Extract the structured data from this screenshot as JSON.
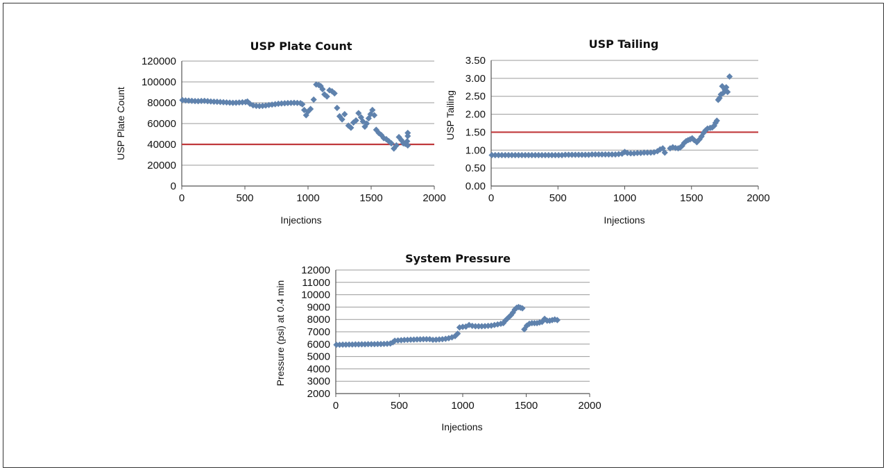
{
  "colors": {
    "marker": "#5f82ad",
    "threshold": "#c0383b",
    "grid": "#9a9a9a",
    "axis": "#555555"
  },
  "chart_data": [
    {
      "type": "scatter",
      "title": "USP Plate Count",
      "xlabel": "Injections",
      "ylabel": "USP Plate Count",
      "xlim": [
        0,
        2000
      ],
      "ylim": [
        0,
        120000
      ],
      "xticks": [
        "0",
        "500",
        "1000",
        "1500",
        "2000"
      ],
      "xtick_values": [
        0,
        500,
        1000,
        1500,
        2000
      ],
      "yticks": [
        "0",
        "20000",
        "40000",
        "60000",
        "80000",
        "100000",
        "120000"
      ],
      "ytick_values": [
        0,
        20000,
        40000,
        60000,
        80000,
        100000,
        120000
      ],
      "grid": true,
      "threshold": 40000,
      "series": [
        {
          "points": [
            [
              5,
              82500
            ],
            [
              30,
              82200
            ],
            [
              55,
              82000
            ],
            [
              80,
              81800
            ],
            [
              105,
              81600
            ],
            [
              130,
              81500
            ],
            [
              155,
              81700
            ],
            [
              180,
              81800
            ],
            [
              205,
              81500
            ],
            [
              230,
              81200
            ],
            [
              255,
              81000
            ],
            [
              280,
              80900
            ],
            [
              305,
              80700
            ],
            [
              330,
              80500
            ],
            [
              355,
              80300
            ],
            [
              380,
              80100
            ],
            [
              405,
              79900
            ],
            [
              430,
              80000
            ],
            [
              455,
              80200
            ],
            [
              480,
              80400
            ],
            [
              505,
              80600
            ],
            [
              520,
              81200
            ],
            [
              540,
              79000
            ],
            [
              565,
              77500
            ],
            [
              590,
              77000
            ],
            [
              615,
              76800
            ],
            [
              640,
              77000
            ],
            [
              665,
              77300
            ],
            [
              690,
              77800
            ],
            [
              715,
              78200
            ],
            [
              740,
              78600
            ],
            [
              765,
              79000
            ],
            [
              790,
              79300
            ],
            [
              815,
              79500
            ],
            [
              840,
              79700
            ],
            [
              865,
              79800
            ],
            [
              890,
              79900
            ],
            [
              915,
              79800
            ],
            [
              940,
              79600
            ],
            [
              955,
              78500
            ],
            [
              970,
              73000
            ],
            [
              985,
              68000
            ],
            [
              1000,
              71500
            ],
            [
              1020,
              74000
            ],
            [
              1045,
              83000
            ],
            [
              1065,
              97500
            ],
            [
              1085,
              97000
            ],
            [
              1100,
              96000
            ],
            [
              1115,
              93000
            ],
            [
              1130,
              88000
            ],
            [
              1150,
              86000
            ],
            [
              1170,
              92000
            ],
            [
              1190,
              91000
            ],
            [
              1210,
              89000
            ],
            [
              1230,
              75000
            ],
            [
              1250,
              67000
            ],
            [
              1270,
              64000
            ],
            [
              1290,
              69000
            ],
            [
              1320,
              58000
            ],
            [
              1340,
              56000
            ],
            [
              1360,
              61000
            ],
            [
              1380,
              63000
            ],
            [
              1400,
              70000
            ],
            [
              1420,
              66000
            ],
            [
              1435,
              62000
            ],
            [
              1450,
              57000
            ],
            [
              1465,
              60000
            ],
            [
              1480,
              65000
            ],
            [
              1495,
              69000
            ],
            [
              1510,
              73000
            ],
            [
              1525,
              68000
            ],
            [
              1540,
              54000
            ],
            [
              1560,
              51000
            ],
            [
              1580,
              49000
            ],
            [
              1600,
              46000
            ],
            [
              1620,
              45000
            ],
            [
              1640,
              43000
            ],
            [
              1660,
              41000
            ],
            [
              1680,
              36000
            ],
            [
              1700,
              39000
            ],
            [
              1720,
              47000
            ],
            [
              1740,
              44000
            ],
            [
              1755,
              41000
            ],
            [
              1770,
              40500
            ],
            [
              1785,
              43000
            ],
            [
              1790,
              39000
            ],
            [
              1790,
              48000
            ],
            [
              1790,
              51000
            ]
          ]
        }
      ]
    },
    {
      "type": "scatter",
      "title": "USP Tailing",
      "xlabel": "Injections",
      "ylabel": "USP Tailing",
      "xlim": [
        0,
        2000
      ],
      "ylim": [
        0,
        3.5
      ],
      "xticks": [
        "0",
        "500",
        "1000",
        "1500",
        "2000"
      ],
      "xtick_values": [
        0,
        500,
        1000,
        1500,
        2000
      ],
      "yticks": [
        "0.00",
        "0.50",
        "1.00",
        "1.50",
        "2.00",
        "2.50",
        "3.00",
        "3.50"
      ],
      "ytick_values": [
        0,
        0.5,
        1,
        1.5,
        2,
        2.5,
        3,
        3.5
      ],
      "grid": true,
      "threshold": 1.5,
      "series": [
        {
          "points": [
            [
              5,
              0.86
            ],
            [
              30,
              0.86
            ],
            [
              55,
              0.86
            ],
            [
              80,
              0.86
            ],
            [
              105,
              0.86
            ],
            [
              130,
              0.86
            ],
            [
              155,
              0.86
            ],
            [
              180,
              0.86
            ],
            [
              205,
              0.86
            ],
            [
              230,
              0.86
            ],
            [
              255,
              0.86
            ],
            [
              280,
              0.86
            ],
            [
              305,
              0.86
            ],
            [
              330,
              0.86
            ],
            [
              355,
              0.86
            ],
            [
              380,
              0.86
            ],
            [
              405,
              0.86
            ],
            [
              430,
              0.86
            ],
            [
              455,
              0.86
            ],
            [
              480,
              0.86
            ],
            [
              505,
              0.86
            ],
            [
              530,
              0.86
            ],
            [
              555,
              0.87
            ],
            [
              580,
              0.87
            ],
            [
              605,
              0.87
            ],
            [
              630,
              0.87
            ],
            [
              655,
              0.87
            ],
            [
              680,
              0.87
            ],
            [
              705,
              0.87
            ],
            [
              730,
              0.87
            ],
            [
              755,
              0.88
            ],
            [
              780,
              0.88
            ],
            [
              805,
              0.88
            ],
            [
              830,
              0.88
            ],
            [
              855,
              0.88
            ],
            [
              880,
              0.88
            ],
            [
              905,
              0.88
            ],
            [
              930,
              0.88
            ],
            [
              955,
              0.89
            ],
            [
              980,
              0.9
            ],
            [
              1000,
              0.95
            ],
            [
              1020,
              0.92
            ],
            [
              1045,
              0.91
            ],
            [
              1070,
              0.91
            ],
            [
              1095,
              0.92
            ],
            [
              1120,
              0.92
            ],
            [
              1145,
              0.93
            ],
            [
              1170,
              0.93
            ],
            [
              1195,
              0.93
            ],
            [
              1220,
              0.94
            ],
            [
              1245,
              0.97
            ],
            [
              1265,
              1.02
            ],
            [
              1285,
              1.05
            ],
            [
              1300,
              0.93
            ],
            [
              1340,
              1.05
            ],
            [
              1360,
              1.08
            ],
            [
              1380,
              1.06
            ],
            [
              1400,
              1.05
            ],
            [
              1415,
              1.07
            ],
            [
              1430,
              1.12
            ],
            [
              1445,
              1.2
            ],
            [
              1460,
              1.25
            ],
            [
              1475,
              1.28
            ],
            [
              1490,
              1.3
            ],
            [
              1505,
              1.33
            ],
            [
              1520,
              1.28
            ],
            [
              1540,
              1.22
            ],
            [
              1560,
              1.3
            ],
            [
              1575,
              1.38
            ],
            [
              1590,
              1.48
            ],
            [
              1605,
              1.55
            ],
            [
              1620,
              1.6
            ],
            [
              1640,
              1.62
            ],
            [
              1655,
              1.63
            ],
            [
              1670,
              1.68
            ],
            [
              1680,
              1.76
            ],
            [
              1690,
              1.82
            ],
            [
              1700,
              2.4
            ],
            [
              1710,
              2.45
            ],
            [
              1720,
              2.55
            ],
            [
              1730,
              2.78
            ],
            [
              1740,
              2.6
            ],
            [
              1750,
              2.68
            ],
            [
              1760,
              2.75
            ],
            [
              1770,
              2.62
            ],
            [
              1785,
              3.05
            ]
          ]
        }
      ]
    },
    {
      "type": "scatter",
      "title": "System Pressure",
      "xlabel": "Injections",
      "ylabel": "Pressure (psi) at 0.4 min",
      "xlim": [
        0,
        2000
      ],
      "ylim": [
        2000,
        12000
      ],
      "xticks": [
        "0",
        "500",
        "1000",
        "1500",
        "2000"
      ],
      "xtick_values": [
        0,
        500,
        1000,
        1500,
        2000
      ],
      "yticks": [
        "2000",
        "3000",
        "4000",
        "5000",
        "6000",
        "7000",
        "8000",
        "9000",
        "10000",
        "11000",
        "12000"
      ],
      "ytick_values": [
        2000,
        3000,
        4000,
        5000,
        6000,
        7000,
        8000,
        9000,
        10000,
        11000,
        12000
      ],
      "grid": true,
      "series": [
        {
          "points": [
            [
              5,
              5950
            ],
            [
              30,
              5950
            ],
            [
              55,
              5960
            ],
            [
              80,
              5960
            ],
            [
              105,
              5970
            ],
            [
              130,
              5970
            ],
            [
              155,
              5980
            ],
            [
              180,
              5980
            ],
            [
              205,
              5990
            ],
            [
              230,
              5990
            ],
            [
              255,
              6000
            ],
            [
              280,
              6000
            ],
            [
              305,
              6000
            ],
            [
              330,
              6010
            ],
            [
              355,
              6010
            ],
            [
              380,
              6020
            ],
            [
              405,
              6030
            ],
            [
              430,
              6050
            ],
            [
              450,
              6150
            ],
            [
              465,
              6280
            ],
            [
              490,
              6300
            ],
            [
              515,
              6320
            ],
            [
              540,
              6340
            ],
            [
              565,
              6350
            ],
            [
              590,
              6360
            ],
            [
              615,
              6370
            ],
            [
              640,
              6380
            ],
            [
              665,
              6390
            ],
            [
              690,
              6400
            ],
            [
              715,
              6400
            ],
            [
              740,
              6400
            ],
            [
              765,
              6350
            ],
            [
              790,
              6360
            ],
            [
              815,
              6380
            ],
            [
              840,
              6400
            ],
            [
              865,
              6430
            ],
            [
              890,
              6480
            ],
            [
              915,
              6550
            ],
            [
              940,
              6650
            ],
            [
              960,
              6850
            ],
            [
              975,
              7350
            ],
            [
              1000,
              7400
            ],
            [
              1025,
              7420
            ],
            [
              1050,
              7550
            ],
            [
              1075,
              7480
            ],
            [
              1100,
              7450
            ],
            [
              1125,
              7450
            ],
            [
              1150,
              7450
            ],
            [
              1175,
              7460
            ],
            [
              1200,
              7480
            ],
            [
              1225,
              7500
            ],
            [
              1250,
              7550
            ],
            [
              1275,
              7600
            ],
            [
              1300,
              7650
            ],
            [
              1320,
              7700
            ],
            [
              1335,
              7900
            ],
            [
              1350,
              8050
            ],
            [
              1365,
              8200
            ],
            [
              1380,
              8350
            ],
            [
              1395,
              8550
            ],
            [
              1410,
              8800
            ],
            [
              1425,
              8950
            ],
            [
              1440,
              9000
            ],
            [
              1455,
              8950
            ],
            [
              1470,
              8900
            ],
            [
              1485,
              7200
            ],
            [
              1505,
              7500
            ],
            [
              1525,
              7650
            ],
            [
              1545,
              7700
            ],
            [
              1565,
              7700
            ],
            [
              1585,
              7700
            ],
            [
              1605,
              7750
            ],
            [
              1625,
              7800
            ],
            [
              1645,
              8050
            ],
            [
              1665,
              7900
            ],
            [
              1685,
              7900
            ],
            [
              1705,
              7950
            ],
            [
              1725,
              8000
            ],
            [
              1745,
              7950
            ]
          ]
        }
      ]
    }
  ]
}
